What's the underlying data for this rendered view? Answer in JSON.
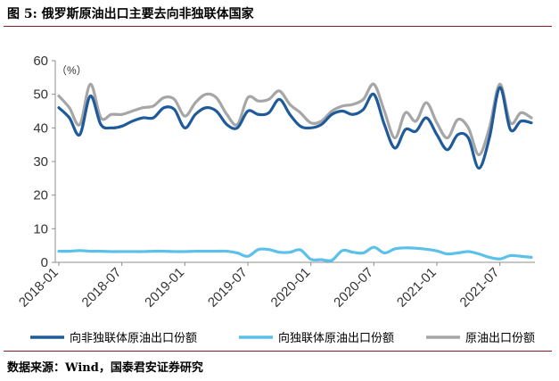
{
  "figure": {
    "title": "图 5: 俄罗斯原油出口主要去向非独联体国家",
    "source": "数据来源：Wind，国泰君安证券研究"
  },
  "chart_data": {
    "type": "line",
    "unit_label": "（%）",
    "ylim": [
      0,
      60
    ],
    "yticks": [
      "0",
      "10",
      "20",
      "30",
      "40",
      "50",
      "60"
    ],
    "xticks": [
      "2018-01",
      "2018-07",
      "2019-01",
      "2019-07",
      "2020-01",
      "2020-07",
      "2021-01",
      "2021-07"
    ],
    "x": [
      "2018-01",
      "2018-02",
      "2018-03",
      "2018-04",
      "2018-05",
      "2018-06",
      "2018-07",
      "2018-08",
      "2018-09",
      "2018-10",
      "2018-11",
      "2018-12",
      "2019-01",
      "2019-02",
      "2019-03",
      "2019-04",
      "2019-05",
      "2019-06",
      "2019-07",
      "2019-08",
      "2019-09",
      "2019-10",
      "2019-11",
      "2019-12",
      "2020-01",
      "2020-02",
      "2020-03",
      "2020-04",
      "2020-05",
      "2020-06",
      "2020-07",
      "2020-08",
      "2020-09",
      "2020-10",
      "2020-11",
      "2020-12",
      "2021-01",
      "2021-02",
      "2021-03",
      "2021-04",
      "2021-05",
      "2021-06",
      "2021-07",
      "2021-08",
      "2021-09",
      "2021-10"
    ],
    "grid": false,
    "legend_position": "bottom",
    "series": [
      {
        "name": "向非独联体原油出口份额",
        "color": "#1f5b9a",
        "values": [
          46,
          43,
          38,
          49.5,
          41,
          40,
          40.5,
          42,
          43,
          43,
          46,
          45.5,
          40,
          44,
          46,
          45,
          41,
          40,
          45,
          44,
          44.5,
          48.5,
          44,
          40.5,
          40,
          41,
          44,
          45,
          44,
          45.5,
          50,
          41,
          34,
          39.5,
          39,
          43,
          38,
          33.5,
          38,
          37,
          28,
          37,
          52,
          39.5,
          42,
          41.5
        ]
      },
      {
        "name": "向独联体原油出口份额",
        "color": "#5bc0ea",
        "values": [
          3.3,
          3.3,
          3.5,
          3.3,
          3.3,
          3.2,
          3.2,
          3.2,
          3.2,
          3.3,
          3.3,
          3.2,
          3.2,
          3.3,
          3.3,
          3.3,
          3.3,
          2.8,
          1.8,
          3.8,
          3.8,
          3.0,
          3.0,
          3.7,
          0.9,
          0.8,
          0.6,
          3.5,
          3.0,
          2.8,
          4.5,
          2.8,
          4.0,
          4.3,
          4.2,
          3.9,
          3.4,
          2.5,
          2.8,
          3.2,
          2.5,
          1.5,
          1.0,
          2.0,
          1.8,
          1.5
        ]
      },
      {
        "name": "原油出口份额",
        "color": "#a6a6a6",
        "values": [
          49.5,
          46,
          41,
          53,
          43,
          44,
          44,
          45,
          46,
          46.5,
          49,
          48.5,
          43.5,
          47.5,
          50,
          49,
          44,
          41,
          49,
          48,
          48.5,
          51,
          47,
          44.5,
          41.5,
          42,
          45,
          46.5,
          47,
          48.5,
          53,
          45,
          37,
          44.5,
          42,
          47.5,
          41.5,
          37,
          42.5,
          40,
          32,
          40,
          53,
          41.5,
          44.5,
          43
        ]
      }
    ]
  }
}
